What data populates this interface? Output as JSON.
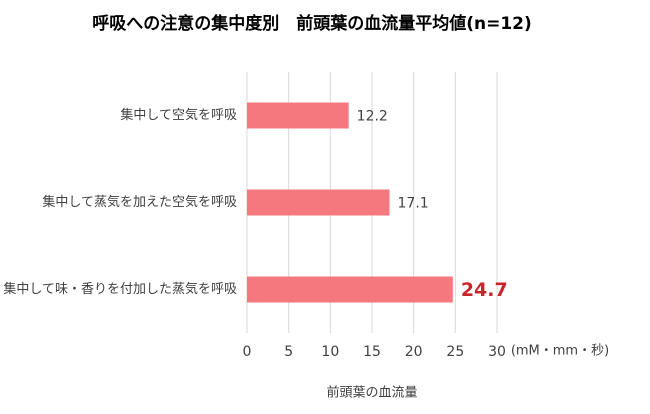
{
  "chart_data": {
    "type": "hbar",
    "title": "呼吸への注意の集中度別　前頭葉の血流量平均値(n=12)",
    "categories": [
      "集中して空気を呼吸",
      "集中して蒸気を加えた空気を呼吸",
      "集中して味・香りを付加した蒸気を呼吸"
    ],
    "values": [
      12.2,
      17.1,
      24.7
    ],
    "color": "#f4787d",
    "value_label_styles": [
      {
        "color": "#404040",
        "bold": false
      },
      {
        "color": "#404040",
        "bold": false
      },
      {
        "color": "#c9242b",
        "bold": true
      }
    ],
    "xlim": [
      0,
      30
    ],
    "xticks": [
      0,
      5,
      10,
      15,
      20,
      25,
      30
    ],
    "grid": true,
    "x_unit": "(mM・mm・秒)",
    "xlabel": "前頭葉の血流量"
  }
}
